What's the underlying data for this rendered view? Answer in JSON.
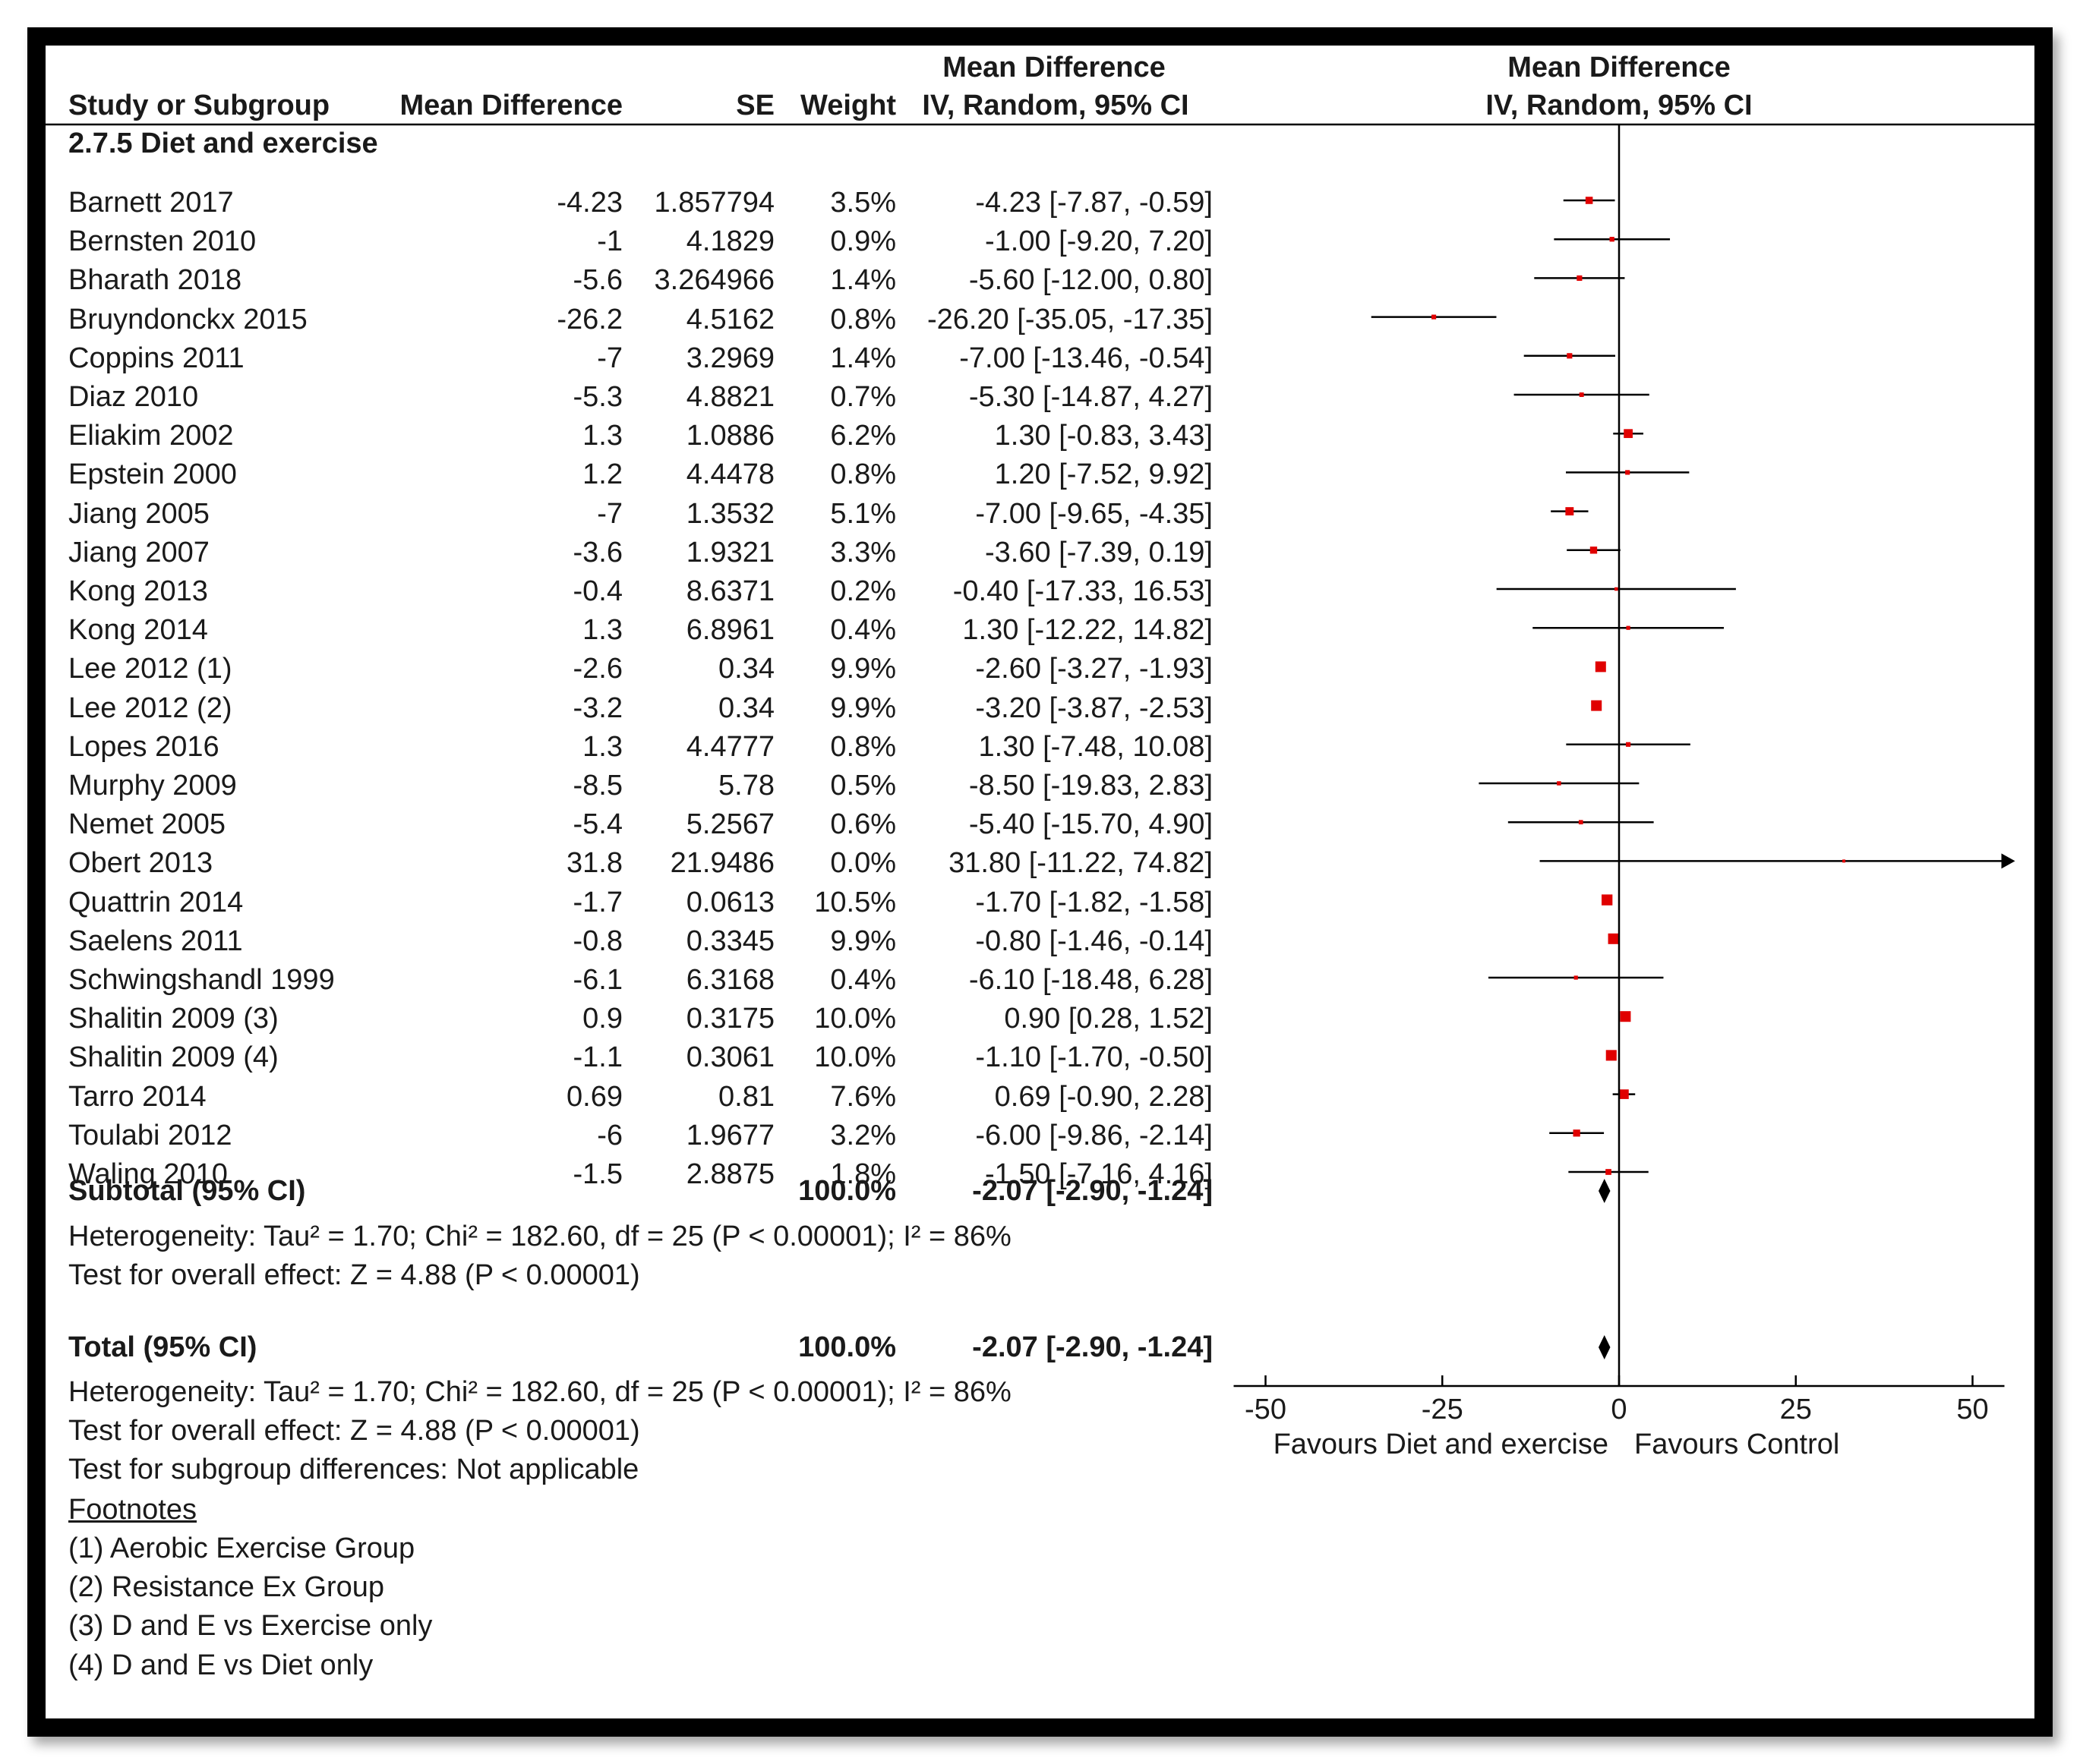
{
  "header": {
    "col_study": "Study or Subgroup",
    "col_md": "Mean Difference",
    "col_se": "SE",
    "col_weight": "Weight",
    "col_ci_line1": "Mean Difference",
    "col_ci_line2": "IV, Random, 95% CI",
    "plot_line1": "Mean Difference",
    "plot_line2": "IV, Random, 95% CI"
  },
  "subgroup_title": "2.7.5 Diet and exercise",
  "rows": [
    {
      "study": "Barnett 2017",
      "md": "-4.23",
      "se": "1.857794",
      "weight": "3.5%",
      "ci": "-4.23 [-7.87, -0.59]"
    },
    {
      "study": "Bernsten 2010",
      "md": "-1",
      "se": "4.1829",
      "weight": "0.9%",
      "ci": "-1.00 [-9.20, 7.20]"
    },
    {
      "study": "Bharath 2018",
      "md": "-5.6",
      "se": "3.264966",
      "weight": "1.4%",
      "ci": "-5.60 [-12.00, 0.80]"
    },
    {
      "study": "Bruyndonckx 2015",
      "md": "-26.2",
      "se": "4.5162",
      "weight": "0.8%",
      "ci": "-26.20 [-35.05, -17.35]"
    },
    {
      "study": "Coppins 2011",
      "md": "-7",
      "se": "3.2969",
      "weight": "1.4%",
      "ci": "-7.00 [-13.46, -0.54]"
    },
    {
      "study": "Diaz 2010",
      "md": "-5.3",
      "se": "4.8821",
      "weight": "0.7%",
      "ci": "-5.30 [-14.87, 4.27]"
    },
    {
      "study": "Eliakim 2002",
      "md": "1.3",
      "se": "1.0886",
      "weight": "6.2%",
      "ci": "1.30 [-0.83, 3.43]"
    },
    {
      "study": "Epstein 2000",
      "md": "1.2",
      "se": "4.4478",
      "weight": "0.8%",
      "ci": "1.20 [-7.52, 9.92]"
    },
    {
      "study": "Jiang 2005",
      "md": "-7",
      "se": "1.3532",
      "weight": "5.1%",
      "ci": "-7.00 [-9.65, -4.35]"
    },
    {
      "study": "Jiang 2007",
      "md": "-3.6",
      "se": "1.9321",
      "weight": "3.3%",
      "ci": "-3.60 [-7.39, 0.19]"
    },
    {
      "study": "Kong 2013",
      "md": "-0.4",
      "se": "8.6371",
      "weight": "0.2%",
      "ci": "-0.40 [-17.33, 16.53]"
    },
    {
      "study": "Kong 2014",
      "md": "1.3",
      "se": "6.8961",
      "weight": "0.4%",
      "ci": "1.30 [-12.22, 14.82]"
    },
    {
      "study": "Lee 2012 (1)",
      "md": "-2.6",
      "se": "0.34",
      "weight": "9.9%",
      "ci": "-2.60 [-3.27, -1.93]"
    },
    {
      "study": "Lee 2012 (2)",
      "md": "-3.2",
      "se": "0.34",
      "weight": "9.9%",
      "ci": "-3.20 [-3.87, -2.53]"
    },
    {
      "study": "Lopes 2016",
      "md": "1.3",
      "se": "4.4777",
      "weight": "0.8%",
      "ci": "1.30 [-7.48, 10.08]"
    },
    {
      "study": "Murphy 2009",
      "md": "-8.5",
      "se": "5.78",
      "weight": "0.5%",
      "ci": "-8.50 [-19.83, 2.83]"
    },
    {
      "study": "Nemet 2005",
      "md": "-5.4",
      "se": "5.2567",
      "weight": "0.6%",
      "ci": "-5.40 [-15.70, 4.90]"
    },
    {
      "study": "Obert 2013",
      "md": "31.8",
      "se": "21.9486",
      "weight": "0.0%",
      "ci": "31.80 [-11.22, 74.82]"
    },
    {
      "study": "Quattrin 2014",
      "md": "-1.7",
      "se": "0.0613",
      "weight": "10.5%",
      "ci": "-1.70 [-1.82, -1.58]"
    },
    {
      "study": "Saelens 2011",
      "md": "-0.8",
      "se": "0.3345",
      "weight": "9.9%",
      "ci": "-0.80 [-1.46, -0.14]"
    },
    {
      "study": "Schwingshandl 1999",
      "md": "-6.1",
      "se": "6.3168",
      "weight": "0.4%",
      "ci": "-6.10 [-18.48, 6.28]"
    },
    {
      "study": "Shalitin 2009 (3)",
      "md": "0.9",
      "se": "0.3175",
      "weight": "10.0%",
      "ci": "0.90 [0.28, 1.52]"
    },
    {
      "study": "Shalitin 2009 (4)",
      "md": "-1.1",
      "se": "0.3061",
      "weight": "10.0%",
      "ci": "-1.10 [-1.70, -0.50]"
    },
    {
      "study": "Tarro 2014",
      "md": "0.69",
      "se": "0.81",
      "weight": "7.6%",
      "ci": "0.69 [-0.90, 2.28]"
    },
    {
      "study": "Toulabi 2012",
      "md": "-6",
      "se": "1.9677",
      "weight": "3.2%",
      "ci": "-6.00 [-9.86, -2.14]"
    },
    {
      "study": "Waling 2010",
      "md": "-1.5",
      "se": "2.8875",
      "weight": "1.8%",
      "ci": "-1.50 [-7.16, 4.16]"
    }
  ],
  "subtotal": {
    "label": "Subtotal (95% CI)",
    "weight": "100.0%",
    "ci": "-2.07 [-2.90, -1.24]"
  },
  "subtotal_heterogeneity": "Heterogeneity: Tau² = 1.70; Chi² = 182.60, df = 25 (P < 0.00001); I² = 86%",
  "subtotal_effect": "Test for overall effect: Z = 4.88 (P < 0.00001)",
  "total": {
    "label": "Total (95% CI)",
    "weight": "100.0%",
    "ci": "-2.07 [-2.90, -1.24]"
  },
  "total_heterogeneity": "Heterogeneity: Tau² = 1.70; Chi² = 182.60, df = 25 (P < 0.00001); I² = 86%",
  "total_effect": "Test for overall effect: Z = 4.88 (P < 0.00001)",
  "subgroup_diff": "Test for subgroup differences: Not applicable",
  "footnotes": {
    "title": "Footnotes",
    "items": [
      "(1) Aerobic Exercise Group",
      "(2) Resistance Ex Group",
      "(3) D and E vs Exercise only",
      "(4) D and E vs Diet only"
    ]
  },
  "axis": {
    "favours_left": "Favours Diet and exercise",
    "favours_right": "Favours Control"
  },
  "colors": {
    "marker": "#e00000",
    "line": "#000000"
  },
  "chart_data": {
    "type": "forest",
    "title": "Mean Difference IV, Random, 95% CI",
    "xlim": [
      -50,
      50
    ],
    "xticks": [
      -50,
      -25,
      0,
      25,
      50
    ],
    "tick_labels": [
      "-50",
      "-25",
      "0",
      "25",
      "50"
    ],
    "series": [
      {
        "name": "Barnett 2017",
        "md": -4.23,
        "lo": -7.87,
        "hi": -0.59,
        "weight": 3.5
      },
      {
        "name": "Bernsten 2010",
        "md": -1.0,
        "lo": -9.2,
        "hi": 7.2,
        "weight": 0.9
      },
      {
        "name": "Bharath 2018",
        "md": -5.6,
        "lo": -12.0,
        "hi": 0.8,
        "weight": 1.4
      },
      {
        "name": "Bruyndonckx 2015",
        "md": -26.2,
        "lo": -35.05,
        "hi": -17.35,
        "weight": 0.8
      },
      {
        "name": "Coppins 2011",
        "md": -7.0,
        "lo": -13.46,
        "hi": -0.54,
        "weight": 1.4
      },
      {
        "name": "Diaz 2010",
        "md": -5.3,
        "lo": -14.87,
        "hi": 4.27,
        "weight": 0.7
      },
      {
        "name": "Eliakim 2002",
        "md": 1.3,
        "lo": -0.83,
        "hi": 3.43,
        "weight": 6.2
      },
      {
        "name": "Epstein 2000",
        "md": 1.2,
        "lo": -7.52,
        "hi": 9.92,
        "weight": 0.8
      },
      {
        "name": "Jiang 2005",
        "md": -7.0,
        "lo": -9.65,
        "hi": -4.35,
        "weight": 5.1
      },
      {
        "name": "Jiang 2007",
        "md": -3.6,
        "lo": -7.39,
        "hi": 0.19,
        "weight": 3.3
      },
      {
        "name": "Kong 2013",
        "md": -0.4,
        "lo": -17.33,
        "hi": 16.53,
        "weight": 0.2
      },
      {
        "name": "Kong 2014",
        "md": 1.3,
        "lo": -12.22,
        "hi": 14.82,
        "weight": 0.4
      },
      {
        "name": "Lee 2012 (1)",
        "md": -2.6,
        "lo": -3.27,
        "hi": -1.93,
        "weight": 9.9
      },
      {
        "name": "Lee 2012 (2)",
        "md": -3.2,
        "lo": -3.87,
        "hi": -2.53,
        "weight": 9.9
      },
      {
        "name": "Lopes 2016",
        "md": 1.3,
        "lo": -7.48,
        "hi": 10.08,
        "weight": 0.8
      },
      {
        "name": "Murphy 2009",
        "md": -8.5,
        "lo": -19.83,
        "hi": 2.83,
        "weight": 0.5
      },
      {
        "name": "Nemet 2005",
        "md": -5.4,
        "lo": -15.7,
        "hi": 4.9,
        "weight": 0.6
      },
      {
        "name": "Obert 2013",
        "md": 31.8,
        "lo": -11.22,
        "hi": 74.82,
        "weight": 0.0
      },
      {
        "name": "Quattrin 2014",
        "md": -1.7,
        "lo": -1.82,
        "hi": -1.58,
        "weight": 10.5
      },
      {
        "name": "Saelens 2011",
        "md": -0.8,
        "lo": -1.46,
        "hi": -0.14,
        "weight": 9.9
      },
      {
        "name": "Schwingshandl 1999",
        "md": -6.1,
        "lo": -18.48,
        "hi": 6.28,
        "weight": 0.4
      },
      {
        "name": "Shalitin 2009 (3)",
        "md": 0.9,
        "lo": 0.28,
        "hi": 1.52,
        "weight": 10.0
      },
      {
        "name": "Shalitin 2009 (4)",
        "md": -1.1,
        "lo": -1.7,
        "hi": -0.5,
        "weight": 10.0
      },
      {
        "name": "Tarro 2014",
        "md": 0.69,
        "lo": -0.9,
        "hi": 2.28,
        "weight": 7.6
      },
      {
        "name": "Toulabi 2012",
        "md": -6.0,
        "lo": -9.86,
        "hi": -2.14,
        "weight": 3.2
      },
      {
        "name": "Waling 2010",
        "md": -1.5,
        "lo": -7.16,
        "hi": 4.16,
        "weight": 1.8
      }
    ],
    "pooled": [
      {
        "name": "Subtotal (95% CI)",
        "md": -2.07,
        "lo": -2.9,
        "hi": -1.24
      },
      {
        "name": "Total (95% CI)",
        "md": -2.07,
        "lo": -2.9,
        "hi": -1.24
      }
    ]
  }
}
